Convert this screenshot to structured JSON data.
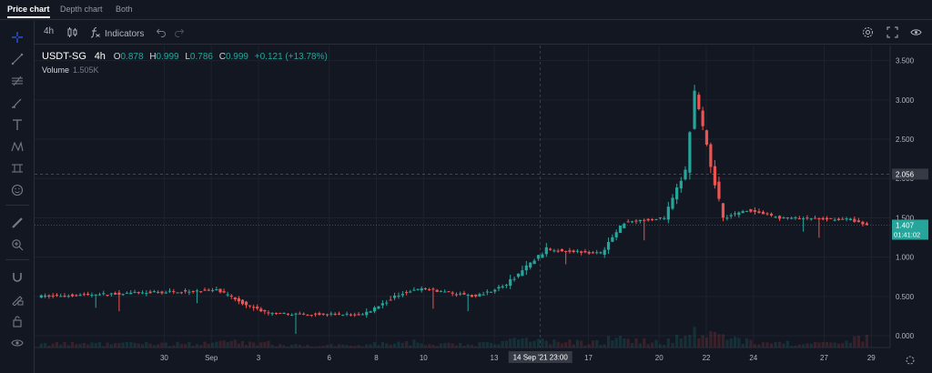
{
  "top_tabs": [
    {
      "label": "Price chart",
      "active": true
    },
    {
      "label": "Depth chart",
      "active": false
    },
    {
      "label": "Both",
      "active": false
    }
  ],
  "toolbar": {
    "interval": "4h",
    "indicators_label": "Indicators"
  },
  "left_tools": [
    "crosshair-icon",
    "trend-line-icon",
    "fib-icon",
    "brush-icon",
    "text-icon",
    "pattern-icon",
    "projection-icon",
    "emoji-icon",
    "ruler-icon",
    "zoom-in-icon",
    "magnet-icon",
    "lock-drawing-icon",
    "lock-icon",
    "eye-icon",
    "trash-icon"
  ],
  "legend": {
    "symbol": "USDT-SG",
    "interval": "4h",
    "o_label": "O",
    "o": "0.878",
    "h_label": "H",
    "h": "0.999",
    "l_label": "L",
    "l": "0.786",
    "c_label": "C",
    "c": "0.999",
    "change": "+0.121 (+13.78%)",
    "volume_label": "Volume",
    "volume_value": "1.505K"
  },
  "crosshair_label": "14 Sep '21  23:00",
  "price_tags": {
    "crosshair_price": "2.056",
    "last_price": "1.407",
    "countdown": "01:41:02"
  },
  "colors": {
    "up": "#26a69a",
    "down": "#ef5350",
    "background": "#131722",
    "grid": "#1e222d",
    "text": "#b2b5be"
  },
  "chart_data": {
    "type": "candlestick",
    "y_ticks": [
      "3.500",
      "3.000",
      "2.500",
      "2.000",
      "1.500",
      "1.000",
      "0.500",
      "0.000"
    ],
    "ylim": [
      -0.15,
      3.6
    ],
    "x_ticks": [
      "30",
      "Sep",
      "3",
      "6",
      "8",
      "10",
      "13",
      "17",
      "20",
      "22",
      "24",
      "27",
      "29"
    ],
    "x_tick_days": [
      -2,
      0,
      2,
      5,
      7,
      9,
      12,
      16,
      19,
      21,
      23,
      26,
      28
    ],
    "xlim_days": [
      -7.5,
      28.8
    ],
    "crosshair_day": 13.96,
    "crosshair_price": 2.056,
    "last_price": 1.407,
    "segments": [
      {
        "from_day": -7.3,
        "to_day": 0.3,
        "from": 0.5,
        "to": 0.58,
        "vol": 0.25
      },
      {
        "from_day": 0.3,
        "to_day": 1.4,
        "from": 0.58,
        "to": 0.42,
        "vol": 0.35
      },
      {
        "from_day": 1.4,
        "to_day": 2.5,
        "from": 0.42,
        "to": 0.28,
        "vol": 0.3
      },
      {
        "from_day": 2.5,
        "to_day": 6.5,
        "from": 0.28,
        "to": 0.27,
        "vol": 0.15
      },
      {
        "from_day": 6.5,
        "to_day": 8.2,
        "from": 0.27,
        "to": 0.55,
        "vol": 0.25
      },
      {
        "from_day": 8.2,
        "to_day": 9.0,
        "from": 0.55,
        "to": 0.6,
        "vol": 0.35
      },
      {
        "from_day": 9.0,
        "to_day": 11.3,
        "from": 0.6,
        "to": 0.5,
        "vol": 0.2
      },
      {
        "from_day": 11.3,
        "to_day": 12.6,
        "from": 0.5,
        "to": 0.65,
        "vol": 0.3
      },
      {
        "from_day": 12.6,
        "to_day": 14.3,
        "from": 0.65,
        "to": 1.1,
        "vol": 0.5
      },
      {
        "from_day": 14.3,
        "to_day": 16.6,
        "from": 1.1,
        "to": 1.05,
        "vol": 0.35
      },
      {
        "from_day": 16.6,
        "to_day": 17.6,
        "from": 1.05,
        "to": 1.45,
        "vol": 0.5
      },
      {
        "from_day": 17.6,
        "to_day": 19.3,
        "from": 1.45,
        "to": 1.5,
        "vol": 0.4
      },
      {
        "from_day": 19.3,
        "to_day": 20.2,
        "from": 1.5,
        "to": 2.1,
        "vol": 0.6
      },
      {
        "from_day": 20.2,
        "to_day": 20.6,
        "from": 2.1,
        "to": 3.1,
        "vol": 1.0
      },
      {
        "from_day": 20.6,
        "to_day": 21.1,
        "from": 3.1,
        "to": 2.4,
        "vol": 0.9
      },
      {
        "from_day": 21.1,
        "to_day": 21.8,
        "from": 2.4,
        "to": 1.5,
        "vol": 0.7
      },
      {
        "from_day": 21.8,
        "to_day": 22.8,
        "from": 1.5,
        "to": 1.6,
        "vol": 0.5
      },
      {
        "from_day": 22.8,
        "to_day": 24.2,
        "from": 1.6,
        "to": 1.5,
        "vol": 0.35
      },
      {
        "from_day": 24.2,
        "to_day": 27.2,
        "from": 1.5,
        "to": 1.48,
        "vol": 0.3
      },
      {
        "from_day": 27.2,
        "to_day": 27.9,
        "from": 1.48,
        "to": 1.407,
        "vol": 0.55
      }
    ]
  }
}
